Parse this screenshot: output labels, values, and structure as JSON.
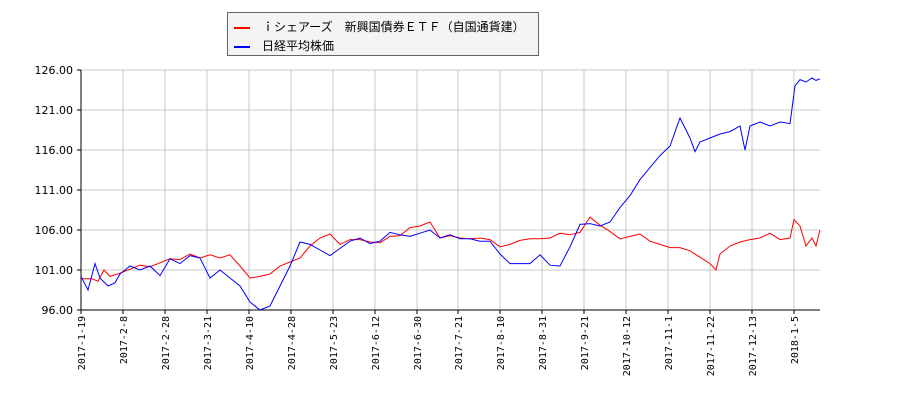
{
  "chart_data": {
    "type": "line",
    "title": "",
    "xlabel": "",
    "ylabel": "",
    "ylim": [
      96,
      126
    ],
    "yticks": [
      "126.00",
      "121.00",
      "116.00",
      "111.00",
      "106.00",
      "101.00",
      "96.00"
    ],
    "xticks": [
      "2017-1-19",
      "2017-2-8",
      "2017-2-28",
      "2017-3-21",
      "2017-4-10",
      "2017-4-28",
      "2017-5-23",
      "2017-6-12",
      "2017-6-30",
      "2017-7-21",
      "2017-8-10",
      "2017-8-31",
      "2017-9-21",
      "2017-10-12",
      "2017-11-1",
      "2017-11-22",
      "2017-12-13",
      "2018-1-5"
    ],
    "grid": true,
    "legend_position": "top",
    "series": [
      {
        "name": "ｉシェアーズ　新興国債券ＥＴＦ（自国通貨建）",
        "color": "#ff0000",
        "points": [
          [
            81,
            99.9
          ],
          [
            92,
            99.9
          ],
          [
            98,
            99.6
          ],
          [
            104,
            101.0
          ],
          [
            110,
            100.2
          ],
          [
            120,
            100.6
          ],
          [
            130,
            101.1
          ],
          [
            140,
            101.6
          ],
          [
            150,
            101.4
          ],
          [
            160,
            101.9
          ],
          [
            170,
            102.4
          ],
          [
            180,
            102.3
          ],
          [
            190,
            103.0
          ],
          [
            200,
            102.5
          ],
          [
            210,
            102.9
          ],
          [
            220,
            102.5
          ],
          [
            230,
            102.9
          ],
          [
            240,
            101.5
          ],
          [
            250,
            100.0
          ],
          [
            260,
            100.2
          ],
          [
            270,
            100.5
          ],
          [
            280,
            101.5
          ],
          [
            290,
            102.0
          ],
          [
            300,
            102.5
          ],
          [
            310,
            104.0
          ],
          [
            320,
            105.0
          ],
          [
            330,
            105.5
          ],
          [
            340,
            104.2
          ],
          [
            350,
            104.8
          ],
          [
            360,
            104.8
          ],
          [
            370,
            104.5
          ],
          [
            380,
            104.4
          ],
          [
            390,
            105.2
          ],
          [
            400,
            105.3
          ],
          [
            410,
            106.3
          ],
          [
            420,
            106.5
          ],
          [
            430,
            107.0
          ],
          [
            440,
            105.0
          ],
          [
            450,
            105.3
          ],
          [
            460,
            105.0
          ],
          [
            470,
            104.9
          ],
          [
            480,
            105.0
          ],
          [
            490,
            104.8
          ],
          [
            500,
            103.9
          ],
          [
            510,
            104.2
          ],
          [
            520,
            104.7
          ],
          [
            530,
            104.9
          ],
          [
            540,
            104.9
          ],
          [
            550,
            105.0
          ],
          [
            560,
            105.6
          ],
          [
            570,
            105.4
          ],
          [
            580,
            105.7
          ],
          [
            590,
            107.6
          ],
          [
            600,
            106.6
          ],
          [
            610,
            105.8
          ],
          [
            620,
            104.9
          ],
          [
            630,
            105.2
          ],
          [
            640,
            105.5
          ],
          [
            650,
            104.6
          ],
          [
            660,
            104.2
          ],
          [
            670,
            103.8
          ],
          [
            680,
            103.8
          ],
          [
            690,
            103.4
          ],
          [
            700,
            102.6
          ],
          [
            710,
            101.8
          ],
          [
            716,
            101.0
          ],
          [
            720,
            103.0
          ],
          [
            730,
            104.0
          ],
          [
            740,
            104.5
          ],
          [
            750,
            104.8
          ],
          [
            760,
            105.0
          ],
          [
            770,
            105.6
          ],
          [
            780,
            104.8
          ],
          [
            790,
            105.0
          ],
          [
            794,
            107.3
          ],
          [
            800,
            106.5
          ],
          [
            806,
            104.0
          ],
          [
            812,
            105.0
          ],
          [
            816,
            104.0
          ],
          [
            820,
            106.0
          ]
        ]
      },
      {
        "name": "日経平均株価",
        "color": "#0000ff",
        "points": [
          [
            81,
            100.2
          ],
          [
            88,
            98.5
          ],
          [
            95,
            101.8
          ],
          [
            100,
            100.0
          ],
          [
            108,
            99.0
          ],
          [
            115,
            99.4
          ],
          [
            120,
            100.5
          ],
          [
            130,
            101.5
          ],
          [
            140,
            101.0
          ],
          [
            150,
            101.5
          ],
          [
            160,
            100.3
          ],
          [
            170,
            102.4
          ],
          [
            180,
            101.8
          ],
          [
            190,
            102.8
          ],
          [
            200,
            102.5
          ],
          [
            210,
            100.0
          ],
          [
            220,
            101.0
          ],
          [
            230,
            100.0
          ],
          [
            240,
            99.0
          ],
          [
            250,
            97.0
          ],
          [
            260,
            96.0
          ],
          [
            270,
            96.5
          ],
          [
            280,
            99.0
          ],
          [
            290,
            101.5
          ],
          [
            300,
            104.5
          ],
          [
            310,
            104.2
          ],
          [
            320,
            103.5
          ],
          [
            330,
            102.8
          ],
          [
            340,
            103.7
          ],
          [
            350,
            104.6
          ],
          [
            360,
            105.0
          ],
          [
            370,
            104.3
          ],
          [
            380,
            104.6
          ],
          [
            390,
            105.7
          ],
          [
            400,
            105.4
          ],
          [
            410,
            105.2
          ],
          [
            420,
            105.6
          ],
          [
            430,
            106.0
          ],
          [
            440,
            105.0
          ],
          [
            450,
            105.4
          ],
          [
            460,
            104.9
          ],
          [
            470,
            104.9
          ],
          [
            480,
            104.6
          ],
          [
            490,
            104.6
          ],
          [
            500,
            103.0
          ],
          [
            510,
            101.8
          ],
          [
            520,
            101.8
          ],
          [
            530,
            101.8
          ],
          [
            540,
            102.9
          ],
          [
            550,
            101.6
          ],
          [
            560,
            101.5
          ],
          [
            570,
            103.9
          ],
          [
            580,
            106.7
          ],
          [
            590,
            106.8
          ],
          [
            600,
            106.5
          ],
          [
            610,
            107.0
          ],
          [
            620,
            108.8
          ],
          [
            630,
            110.3
          ],
          [
            640,
            112.3
          ],
          [
            650,
            113.8
          ],
          [
            660,
            115.3
          ],
          [
            670,
            116.5
          ],
          [
            680,
            120.0
          ],
          [
            690,
            117.5
          ],
          [
            695,
            115.8
          ],
          [
            700,
            117.0
          ],
          [
            710,
            117.5
          ],
          [
            720,
            118.0
          ],
          [
            730,
            118.3
          ],
          [
            740,
            119.0
          ],
          [
            745,
            116.0
          ],
          [
            750,
            119.0
          ],
          [
            760,
            119.5
          ],
          [
            770,
            119.0
          ],
          [
            780,
            119.5
          ],
          [
            790,
            119.3
          ],
          [
            795,
            124.0
          ],
          [
            800,
            124.8
          ],
          [
            806,
            124.5
          ],
          [
            812,
            125.0
          ],
          [
            816,
            124.7
          ],
          [
            820,
            124.9
          ]
        ]
      }
    ]
  },
  "legend": {
    "items": [
      {
        "label": "ｉシェアーズ　新興国債券ＥＴＦ（自国通貨建）",
        "color": "#ff0000"
      },
      {
        "label": "日経平均株価",
        "color": "#0000ff"
      }
    ]
  }
}
